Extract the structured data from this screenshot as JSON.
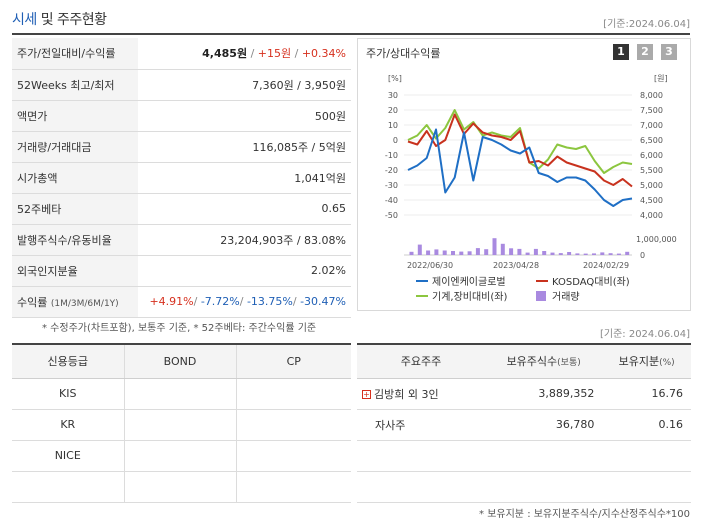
{
  "header": {
    "title_blue": "시세",
    "title_rest": " 및 주주현황",
    "date": "[기준:2024.06.04]"
  },
  "price_rows": [
    {
      "label": "주가/전일대비/수익률"
    },
    {
      "label": "52Weeks 최고/최저",
      "value": "7,360원 / 3,950원"
    },
    {
      "label": "액면가",
      "value": "500원"
    },
    {
      "label": "거래량/거래대금",
      "value": "116,085주 / 5억원"
    },
    {
      "label": "시가총액",
      "value": "1,041억원"
    },
    {
      "label": "52주베타",
      "value": "0.65"
    },
    {
      "label": "발행주식수/유동비율",
      "value": "23,204,903주 / 83.08%"
    },
    {
      "label": "외국인지분율",
      "value": "2.02%"
    },
    {
      "label": "수익률",
      "label_small": "(1M/3M/6M/1Y)"
    }
  ],
  "price_today": {
    "price": "4,485원",
    "sep": " / ",
    "change": "+15원",
    "sep2": " / ",
    "rate": "+0.34%"
  },
  "returns": {
    "r1m": "+4.91%",
    "r3m": "-7.72%",
    "r6m": "-13.75%",
    "r1y": "-30.47%",
    "sep": "/ "
  },
  "footnote_left": "* 수정주가(차트포함), 보통주 기준, * 52주베타: 주간수익률 기준",
  "footnote_right": "[기준: 2024.06.04]",
  "chart_panel": {
    "title": "주가/상대수익률",
    "page_buttons": [
      "1",
      "2",
      "3"
    ],
    "active_page": "1",
    "colors": {
      "company": "#1f6fc5",
      "kosdaq": "#c8321e",
      "machinery": "#8cc63f",
      "volume": "#a98ae0"
    }
  },
  "chart_data": {
    "type": "line",
    "left_unit": "[%]",
    "right_unit": "[원]",
    "left_ticks": [
      30,
      20,
      10,
      0,
      -10,
      -20,
      -30,
      -40,
      -50
    ],
    "left_ylim": [
      -50,
      30
    ],
    "right_ticks": [
      "8,000",
      "7,500",
      "7,000",
      "6,500",
      "6,000",
      "5,500",
      "5,000",
      "4,500",
      "4,000"
    ],
    "right_ylim": [
      4000,
      8000
    ],
    "volume_tick_labels": [
      "1,000,000",
      "0"
    ],
    "volume_ylim": [
      0,
      1000000
    ],
    "x_tick_labels": [
      "2022/06/30",
      "2023/04/28",
      "2024/02/29"
    ],
    "series": [
      {
        "name": "제이엔케이글로벌",
        "axis": "left",
        "values": [
          -20,
          -17,
          -12,
          7,
          -35,
          -25,
          5,
          -27,
          2,
          0,
          -3,
          -7,
          -9,
          -5,
          -22,
          -24,
          -28,
          -25,
          -25,
          -27,
          -33,
          -40,
          -44,
          -40,
          -39
        ]
      },
      {
        "name": "KOSDAQ대비(좌)",
        "axis": "left",
        "values": [
          -1,
          -3,
          6,
          -4,
          0,
          17,
          4,
          11,
          5,
          3,
          2,
          0,
          6,
          -15,
          -14,
          -17,
          -11,
          -15,
          -17,
          -19,
          -21,
          -27,
          -30,
          -26,
          -31
        ]
      },
      {
        "name": "기계,장비대비(좌)",
        "axis": "left",
        "values": [
          0,
          3,
          10,
          1,
          8,
          20,
          7,
          12,
          3,
          5,
          3,
          2,
          8,
          -15,
          -19,
          -13,
          -3,
          -5,
          -6,
          -4,
          -14,
          -22,
          -18,
          -15,
          -16
        ]
      },
      {
        "name": "거래량",
        "axis": "volume",
        "type": "bar",
        "values": [
          200000,
          650000,
          280000,
          350000,
          280000,
          250000,
          210000,
          230000,
          430000,
          360000,
          1050000,
          700000,
          420000,
          380000,
          150000,
          380000,
          250000,
          150000,
          120000,
          190000,
          100000,
          90000,
          100000,
          160000,
          110000,
          90000,
          200000
        ]
      }
    ]
  },
  "credit_table": {
    "headers": [
      "신용등급",
      "BOND",
      "CP"
    ],
    "rows": [
      [
        "KIS",
        "",
        ""
      ],
      [
        "KR",
        "",
        ""
      ],
      [
        "NICE",
        "",
        ""
      ],
      [
        "",
        "",
        ""
      ]
    ]
  },
  "shareholders": {
    "headers": {
      "h1": "주요주주",
      "h2": "보유주식수",
      "h2_small": "(보통)",
      "h3": "보유지분",
      "h3_small": "(%)"
    },
    "rows": [
      {
        "name": "김방희 외 3인",
        "shares": "3,889,352",
        "pct": "16.76",
        "expand": "+"
      },
      {
        "name": "자사주",
        "shares": "36,780",
        "pct": "0.16"
      }
    ]
  },
  "footnote_bottom": "* 보유지분 : 보유지분주식수/지수산정주식수*100"
}
